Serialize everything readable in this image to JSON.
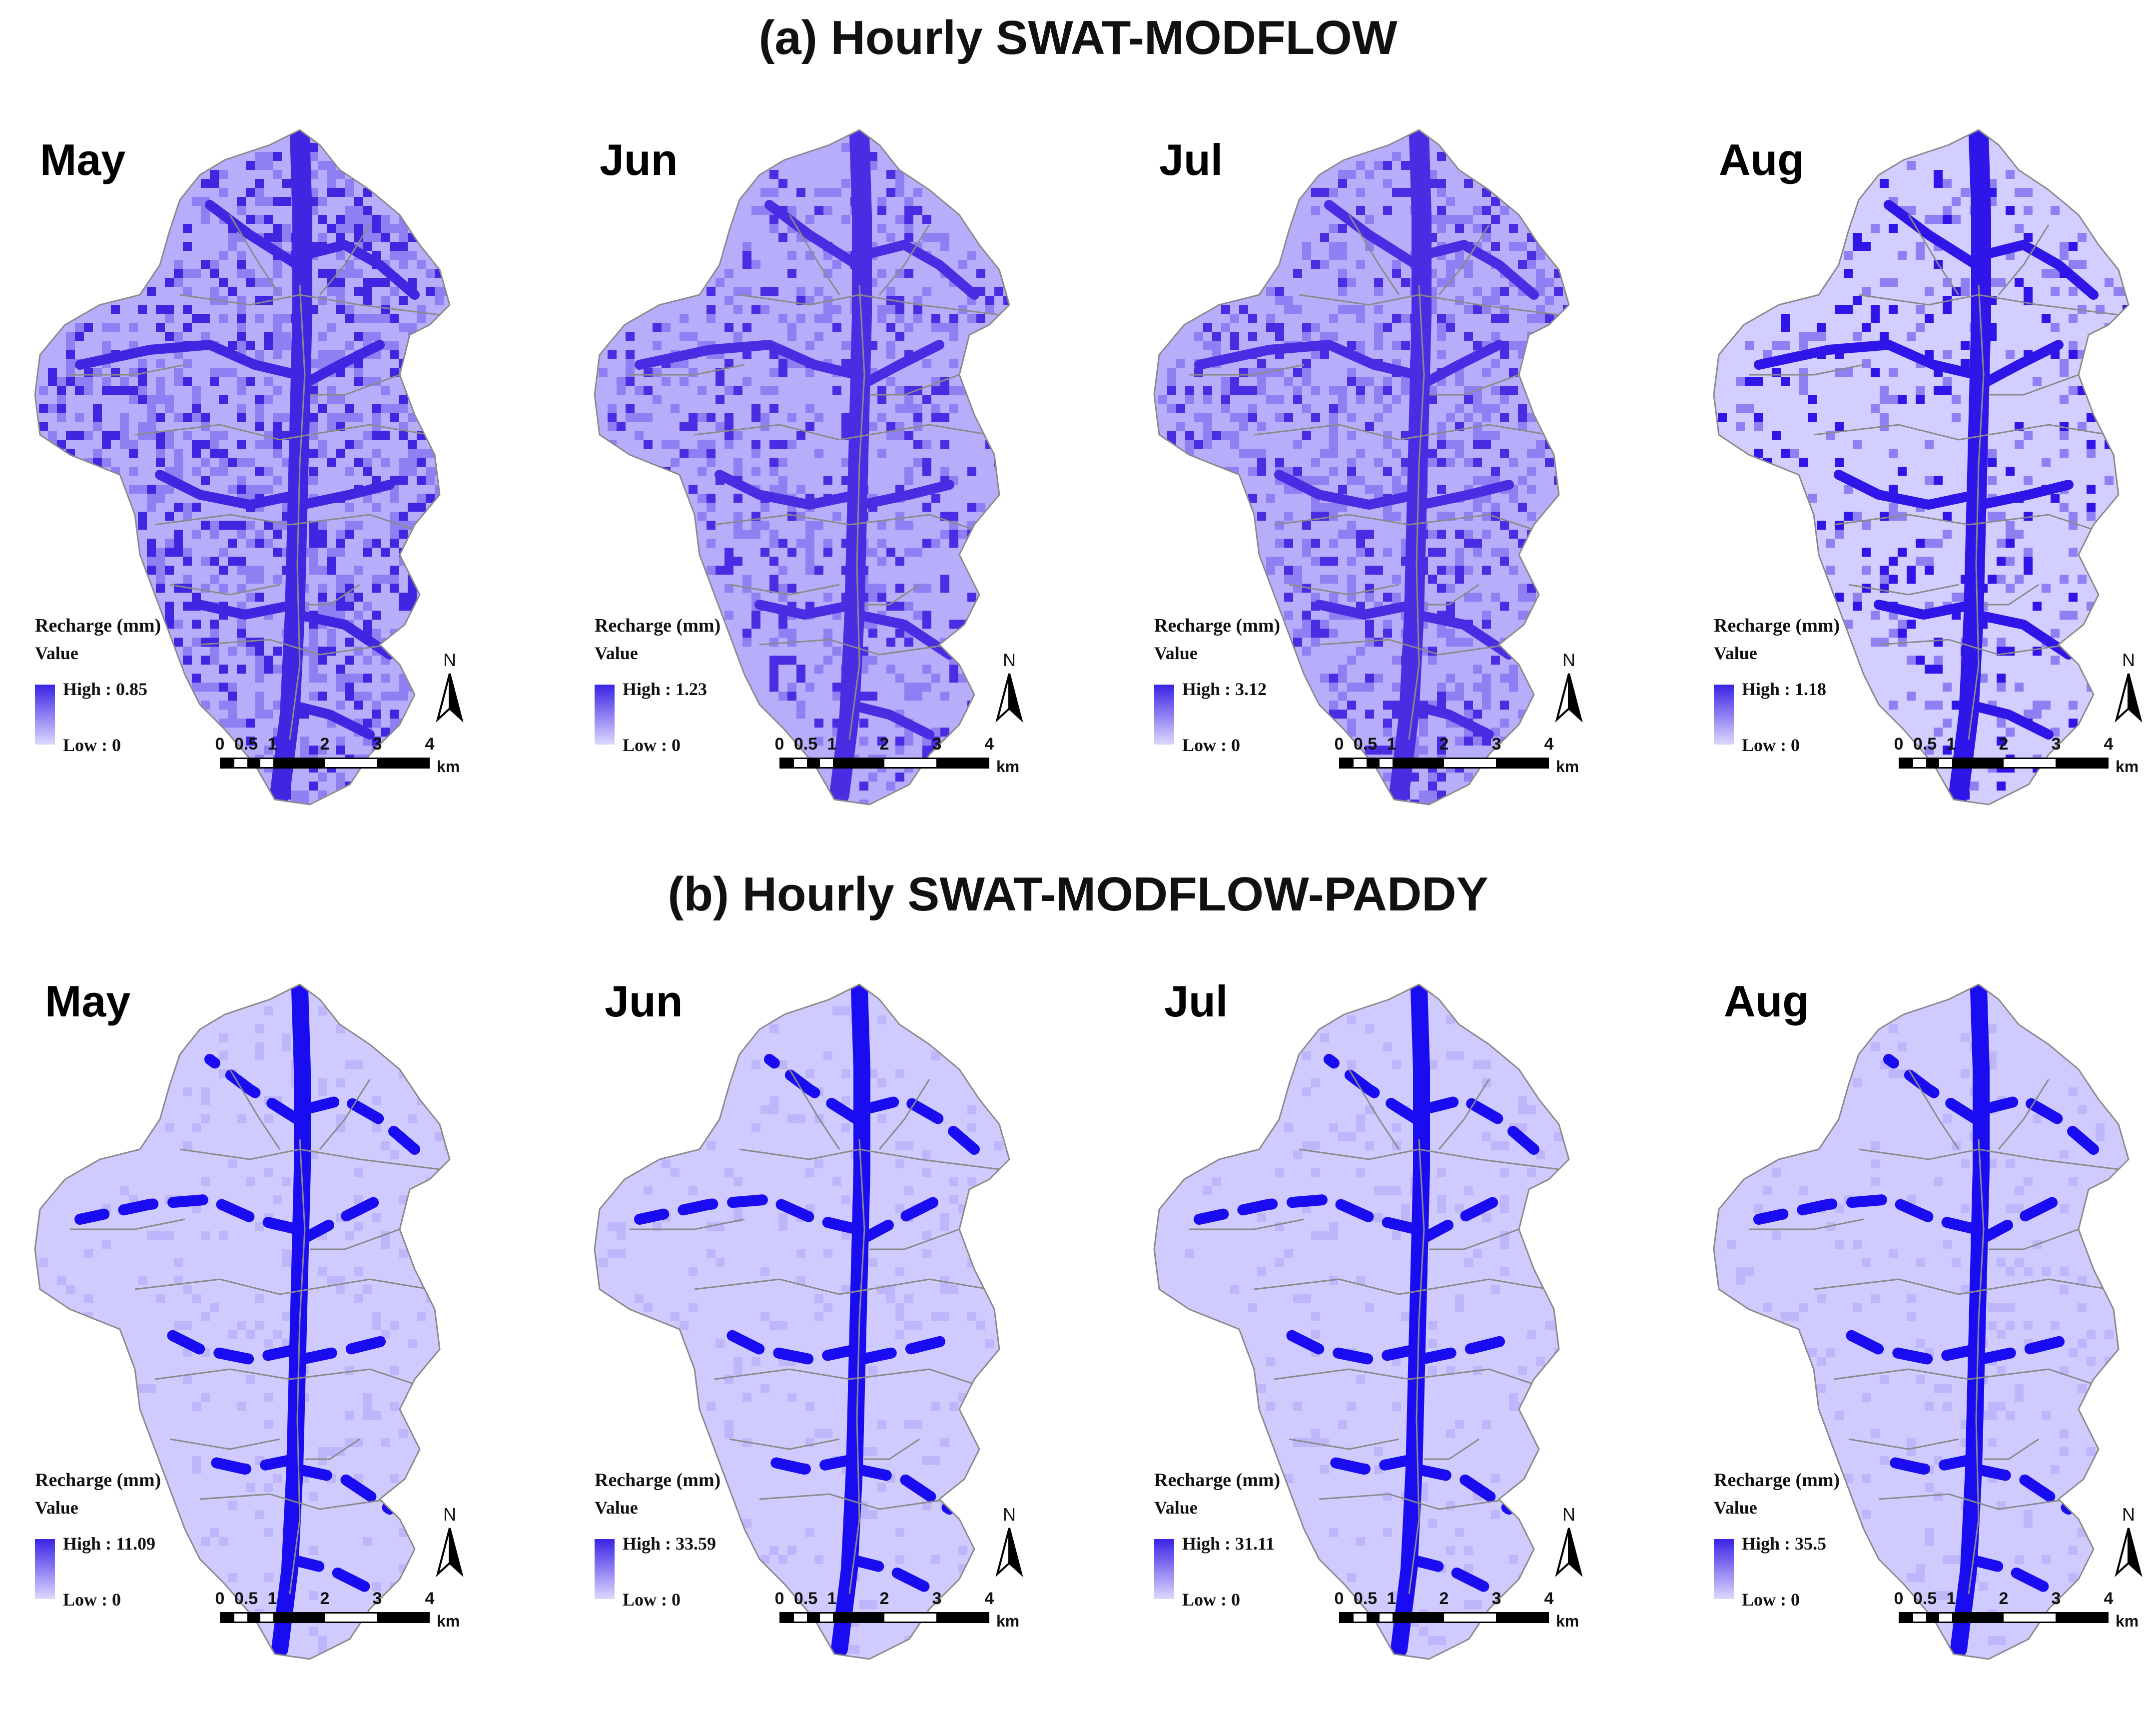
{
  "sections": [
    {
      "title": "(a) Hourly SWAT-MODFLOW",
      "panels": [
        {
          "month": "May",
          "legend_title": "Recharge (mm)",
          "legend_value": "Value",
          "high": "High : 0.85",
          "low": "Low : 0",
          "high_color": "#3f26e0",
          "density": 0.78
        },
        {
          "month": "Jun",
          "legend_title": "Recharge (mm)",
          "legend_value": "Value",
          "high": "High : 1.23",
          "low": "Low : 0",
          "high_color": "#4a2de2",
          "density": 0.55
        },
        {
          "month": "Jul",
          "legend_title": "Recharge (mm)",
          "legend_value": "Value",
          "high": "High : 3.12",
          "low": "Low : 0",
          "high_color": "#4a2de2",
          "density": 0.62
        },
        {
          "month": "Aug",
          "legend_title": "Recharge (mm)",
          "legend_value": "Value",
          "high": "High : 1.18",
          "low": "Low : 0",
          "high_color": "#2f16e8",
          "density": 0.3
        }
      ]
    },
    {
      "title": "(b) Hourly SWAT-MODFLOW-PADDY",
      "panels": [
        {
          "month": "May",
          "legend_title": "Recharge (mm)",
          "legend_value": "Value",
          "high": "High : 11.09",
          "low": "Low : 0",
          "high_color": "#1a0cf0",
          "density": 0.2
        },
        {
          "month": "Jun",
          "legend_title": "Recharge (mm)",
          "legend_value": "Value",
          "high": "High : 33.59",
          "low": "Low : 0",
          "high_color": "#1a0cf0",
          "density": 0.22
        },
        {
          "month": "Jul",
          "legend_title": "Recharge (mm)",
          "legend_value": "Value",
          "high": "High : 31.11",
          "low": "Low : 0",
          "high_color": "#1a0cf0",
          "density": 0.22
        },
        {
          "month": "Aug",
          "legend_title": "Recharge (mm)",
          "legend_value": "Value",
          "high": "High : 35.5",
          "low": "Low : 0",
          "high_color": "#1a0cf0",
          "density": 0.22
        }
      ]
    }
  ],
  "scalebar": {
    "labels": [
      "0",
      "0.5",
      "1",
      "2",
      "3",
      "4"
    ],
    "unit": "km"
  },
  "north_arrow": {
    "letter": "N",
    "icon": "north-arrow-icon"
  },
  "colors": {
    "low": "#dcd9ff",
    "base": "#c9c6ff",
    "high": "#1a0cf0",
    "boundary": "#8a8a8a"
  }
}
